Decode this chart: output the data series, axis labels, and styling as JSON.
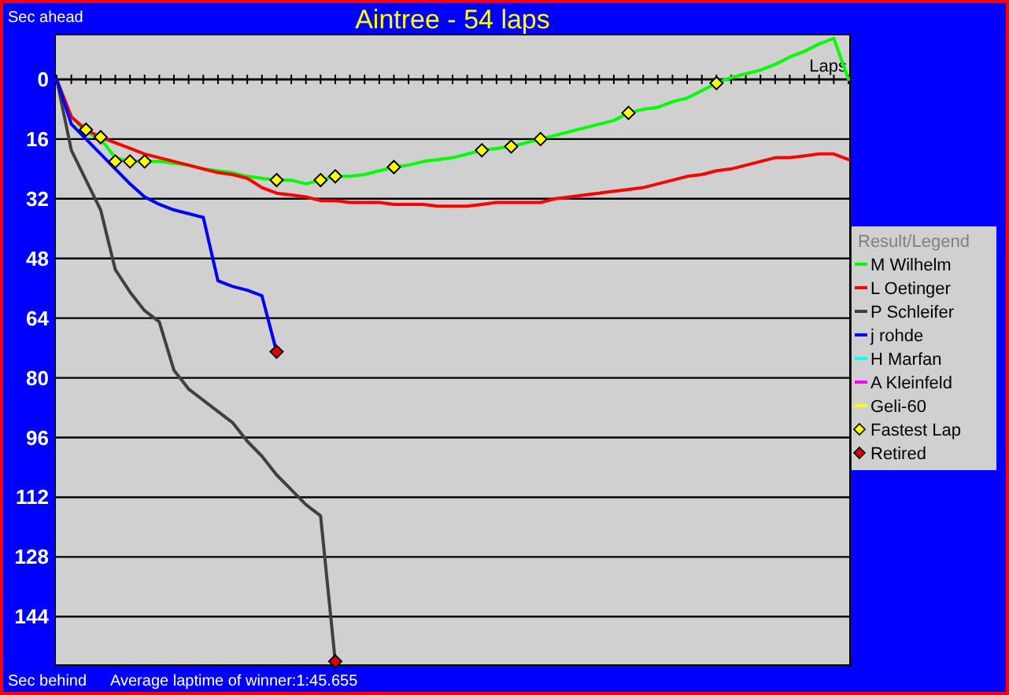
{
  "chart_data": {
    "type": "line",
    "title": "Aintree - 54 laps",
    "xlabel": "Laps",
    "legend_title": "Result/Legend",
    "annotations": [
      "Sec ahead",
      "Sec behind",
      "Average laptime of winner:1:45.655"
    ],
    "categories": [
      null,
      null,
      null,
      null,
      null,
      null,
      null,
      null,
      null,
      null,
      null,
      null,
      null,
      null,
      null,
      null,
      null,
      null,
      null,
      null,
      null,
      null,
      null,
      null,
      null,
      null,
      null,
      null,
      null,
      null,
      null,
      null,
      null,
      null,
      null,
      null,
      null,
      null,
      null,
      null,
      null,
      null,
      null,
      null,
      null,
      null,
      null,
      null,
      null,
      null,
      null,
      null,
      null,
      null,
      null
    ],
    "ylim": [
      157,
      -12
    ],
    "yticks": [
      0,
      16,
      32,
      48,
      64,
      80,
      96,
      112,
      128,
      144
    ],
    "grid": "y",
    "legend": "right",
    "tick_labels": "y",
    "series": [
      {
        "name": "M Wilhelm",
        "color": "#00ff00",
        "values": [
          0,
          10,
          14,
          16,
          21,
          22,
          22,
          22,
          22.5,
          23,
          24,
          24.5,
          25,
          26,
          26.5,
          27,
          27,
          28,
          27,
          26,
          26,
          25.5,
          24.5,
          23.5,
          23,
          22,
          21.5,
          21,
          20,
          19,
          18.5,
          18,
          17,
          16,
          15,
          14,
          13,
          12,
          11,
          9,
          8,
          7.5,
          6,
          5,
          3,
          1,
          -0.5,
          -1.5,
          -2.5,
          -4,
          -6,
          -7.5,
          -9.5,
          -11,
          0
        ]
      },
      {
        "name": "L Oetinger",
        "color": "#ff0000",
        "values": [
          0,
          10,
          13.5,
          15.5,
          17,
          18.5,
          20,
          21,
          22,
          23,
          24,
          25,
          25.5,
          26.5,
          29,
          30.5,
          31,
          31.5,
          32.5,
          32.5,
          33,
          33,
          33,
          33.5,
          33.5,
          33.5,
          34,
          34,
          34,
          33.5,
          33,
          33,
          33,
          33,
          32,
          31.5,
          31,
          30.5,
          30,
          29.5,
          29,
          28,
          27,
          26,
          25.5,
          24.5,
          24,
          23,
          22,
          21,
          21,
          20.5,
          20,
          20,
          21.5
        ]
      },
      {
        "name": "P Schleifer",
        "color": "#404040",
        "values": [
          0,
          19,
          27,
          35,
          51,
          57,
          62,
          65,
          78,
          83,
          86,
          89,
          92,
          97,
          101,
          106,
          110,
          114,
          117,
          156,
          null,
          null,
          null,
          null,
          null,
          null,
          null,
          null,
          null,
          null,
          null,
          null,
          null,
          null,
          null,
          null,
          null,
          null,
          null,
          null,
          null,
          null,
          null,
          null,
          null,
          null,
          null,
          null,
          null,
          null,
          null,
          null,
          null,
          null,
          null
        ]
      },
      {
        "name": "j rohde",
        "color": "#0000ff",
        "values": [
          0,
          12,
          16,
          20,
          24,
          28,
          31.5,
          33.5,
          35,
          36,
          37,
          54,
          55.5,
          56.5,
          58,
          73,
          null,
          null,
          null,
          null,
          null,
          null,
          null,
          null,
          null,
          null,
          null,
          null,
          null,
          null,
          null,
          null,
          null,
          null,
          null,
          null,
          null,
          null,
          null,
          null,
          null,
          null,
          null,
          null,
          null,
          null,
          null,
          null,
          null,
          null,
          null,
          null,
          null,
          null,
          null
        ]
      },
      {
        "name": "H Marfan",
        "color": "#00ffff",
        "values": [
          null,
          null,
          null,
          null,
          null,
          null,
          null,
          null,
          null,
          null,
          null,
          null,
          null,
          null,
          null,
          null,
          null,
          null,
          null,
          null,
          null,
          null,
          null,
          null,
          null,
          null,
          null,
          null,
          null,
          null,
          null,
          null,
          null,
          null,
          null,
          null,
          null,
          null,
          null,
          null,
          null,
          null,
          null,
          null,
          null,
          null,
          null,
          null,
          null,
          null,
          null,
          null,
          null,
          null,
          null
        ]
      },
      {
        "name": "A Kleinfeld",
        "color": "#ff00ff",
        "values": [
          null,
          null,
          null,
          null,
          null,
          null,
          null,
          null,
          null,
          null,
          null,
          null,
          null,
          null,
          null,
          null,
          null,
          null,
          null,
          null,
          null,
          null,
          null,
          null,
          null,
          null,
          null,
          null,
          null,
          null,
          null,
          null,
          null,
          null,
          null,
          null,
          null,
          null,
          null,
          null,
          null,
          null,
          null,
          null,
          null,
          null,
          null,
          null,
          null,
          null,
          null,
          null,
          null,
          null,
          null
        ]
      },
      {
        "name": "Geli-60",
        "color": "#ffff00",
        "values": [
          null,
          null,
          null,
          null,
          null,
          null,
          null,
          null,
          null,
          null,
          null,
          null,
          null,
          null,
          null,
          null,
          null,
          null,
          null,
          null,
          null,
          null,
          null,
          null,
          null,
          null,
          null,
          null,
          null,
          null,
          null,
          null,
          null,
          null,
          null,
          null,
          null,
          null,
          null,
          null,
          null,
          null,
          null,
          null,
          null,
          null,
          null,
          null,
          null,
          null,
          null,
          null,
          null,
          null,
          null
        ]
      },
      {
        "name": "Fastest Lap",
        "type": "scatter",
        "marker": "diamond",
        "color": "#ffff00",
        "values": [
          null,
          null,
          13.5,
          15.5,
          22,
          22,
          22,
          null,
          null,
          null,
          null,
          null,
          null,
          null,
          null,
          27,
          null,
          null,
          27,
          26,
          null,
          null,
          null,
          23.5,
          null,
          null,
          null,
          null,
          null,
          19,
          null,
          18,
          null,
          16,
          null,
          null,
          null,
          null,
          null,
          9,
          null,
          null,
          null,
          null,
          null,
          1,
          null,
          null,
          null,
          null,
          null,
          null,
          null,
          null,
          null
        ]
      },
      {
        "name": "Retired",
        "type": "scatter",
        "marker": "diamond",
        "color": "#e00000",
        "values": [
          null,
          null,
          null,
          null,
          null,
          null,
          null,
          null,
          null,
          null,
          null,
          null,
          null,
          null,
          null,
          73,
          null,
          null,
          null,
          156,
          null,
          null,
          null,
          null,
          null,
          null,
          null,
          null,
          null,
          null,
          null,
          null,
          null,
          null,
          null,
          null,
          null,
          null,
          null,
          null,
          null,
          null,
          null,
          null,
          null,
          null,
          null,
          null,
          null,
          null,
          null,
          null,
          null,
          null,
          null
        ]
      }
    ]
  }
}
